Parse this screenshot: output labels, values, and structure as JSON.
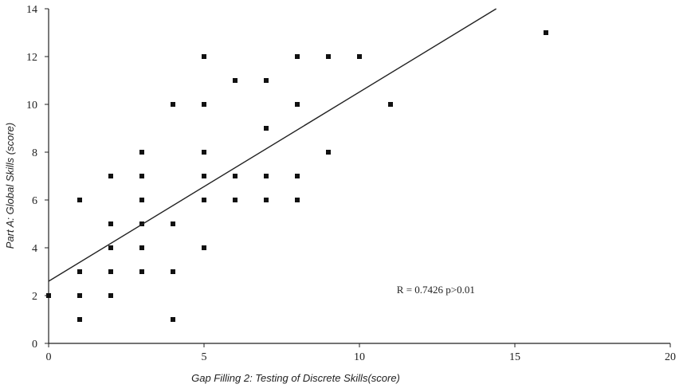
{
  "chart_data": {
    "type": "scatter",
    "xlabel": "Gap Filling 2: Testing of Discrete Skills(score)",
    "ylabel": "Part A: Global Skills (score)",
    "xlim": [
      0,
      20
    ],
    "ylim": [
      0,
      14
    ],
    "x_ticks": [
      0,
      5,
      10,
      15,
      20
    ],
    "y_ticks": [
      0,
      2,
      4,
      6,
      8,
      10,
      12,
      14
    ],
    "grid": false,
    "annotation": "R = 0.7426  p>0.01",
    "trend_line": [
      [
        0,
        2.6
      ],
      [
        14.4,
        14
      ]
    ],
    "points": [
      [
        0,
        2
      ],
      [
        1,
        6
      ],
      [
        1,
        3
      ],
      [
        1,
        2
      ],
      [
        1,
        1
      ],
      [
        2,
        7
      ],
      [
        2,
        5
      ],
      [
        2,
        4
      ],
      [
        2,
        3
      ],
      [
        2,
        2
      ],
      [
        3,
        8
      ],
      [
        3,
        7
      ],
      [
        3,
        6
      ],
      [
        3,
        5
      ],
      [
        3,
        4
      ],
      [
        3,
        3
      ],
      [
        4,
        10
      ],
      [
        4,
        5
      ],
      [
        4,
        3
      ],
      [
        4,
        1
      ],
      [
        5,
        12
      ],
      [
        5,
        10
      ],
      [
        5,
        8
      ],
      [
        5,
        7
      ],
      [
        5,
        6
      ],
      [
        5,
        4
      ],
      [
        6,
        11
      ],
      [
        6,
        7
      ],
      [
        6,
        6
      ],
      [
        7,
        11
      ],
      [
        7,
        9
      ],
      [
        7,
        7
      ],
      [
        7,
        6
      ],
      [
        8,
        12
      ],
      [
        8,
        10
      ],
      [
        8,
        7
      ],
      [
        8,
        6
      ],
      [
        9,
        12
      ],
      [
        9,
        8
      ],
      [
        10,
        12
      ],
      [
        11,
        10
      ],
      [
        16,
        13
      ]
    ]
  }
}
